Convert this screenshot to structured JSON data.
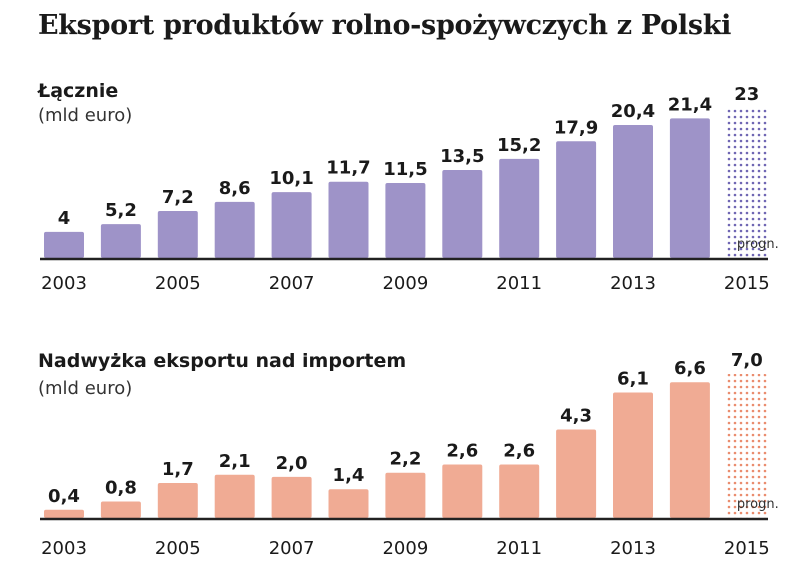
{
  "title": "Eksport produktów rolno-spożywczych z Polski",
  "colors": {
    "panel1": "#9e93c8",
    "panel1_forecast": "#6f66b3",
    "panel2": "#f0ab94",
    "panel2_forecast": "#ea8c6e",
    "axis": "#222222"
  },
  "chart_data": [
    {
      "type": "bar",
      "title": "Łącznie",
      "unit": "(mld euro)",
      "x": [
        2003,
        2004,
        2005,
        2006,
        2007,
        2008,
        2009,
        2010,
        2011,
        2012,
        2013,
        2014,
        2015
      ],
      "values": [
        4,
        5.2,
        7.2,
        8.6,
        10.1,
        11.7,
        11.5,
        13.5,
        15.2,
        17.9,
        20.4,
        21.4,
        23
      ],
      "value_labels": [
        "4",
        "5,2",
        "7,2",
        "8,6",
        "10,1",
        "11,7",
        "11,5",
        "13,5",
        "15,2",
        "17,9",
        "20,4",
        "21,4",
        "23"
      ],
      "x_tick_labels": [
        "2003",
        "2005",
        "2007",
        "2009",
        "2011",
        "2013",
        "2015"
      ],
      "forecast": {
        "year": 2015,
        "label": "progn."
      },
      "ylim": [
        0,
        23
      ]
    },
    {
      "type": "bar",
      "title": "Nadwyżka eksportu nad importem",
      "unit": "(mld euro)",
      "x": [
        2003,
        2004,
        2005,
        2006,
        2007,
        2008,
        2009,
        2010,
        2011,
        2012,
        2013,
        2014,
        2015
      ],
      "values": [
        0.4,
        0.8,
        1.7,
        2.1,
        2.0,
        1.4,
        2.2,
        2.6,
        2.6,
        4.3,
        6.1,
        6.6,
        7.0
      ],
      "value_labels": [
        "0,4",
        "0,8",
        "1,7",
        "2,1",
        "2,0",
        "1,4",
        "2,2",
        "2,6",
        "2,6",
        "4,3",
        "6,1",
        "6,6",
        "7,0"
      ],
      "x_tick_labels": [
        "2003",
        "2005",
        "2007",
        "2009",
        "2011",
        "2013",
        "2015"
      ],
      "forecast": {
        "year": 2015,
        "label": "progn."
      },
      "ylim": [
        0,
        7
      ]
    }
  ]
}
